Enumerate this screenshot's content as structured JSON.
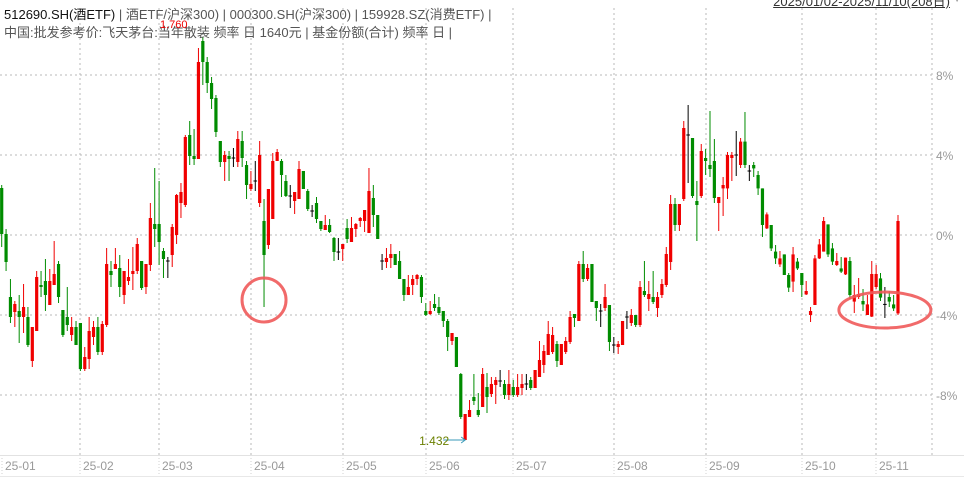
{
  "header": {
    "line1": [
      {
        "text": "512690.SH(酒ETF)",
        "primary": true
      },
      {
        "text": " | 酒ETF/沪深300) | 000300.SH(沪深300) | 159928.SZ(消费ETF) |",
        "primary": false
      }
    ],
    "line2": "中国:批发参考价:飞天茅台:当年散装 频率 日 1640元 | 基金份额(合计) 频率 日 |",
    "overlap_value": "1.760",
    "date_range": "2025/01/02-2025/11/10(208日)"
  },
  "colors": {
    "up": "#f00000",
    "down": "#008c00",
    "flat": "#000000",
    "annotation": "#f05a5a",
    "grid": "#b8b8b8",
    "axis_text": "#999999",
    "min_label": "#6b8000",
    "min_arrow": "#3a9ab8"
  },
  "chart_data": {
    "type": "candlestick",
    "y_unit": "%",
    "ylim": [
      -11,
      9.75
    ],
    "grid": true,
    "y_ticks": [
      {
        "value": 8,
        "label": "8%"
      },
      {
        "value": 4,
        "label": "4%"
      },
      {
        "value": 0,
        "label": "0%"
      },
      {
        "value": -4,
        "label": "-4%"
      },
      {
        "value": -8,
        "label": "-8%"
      }
    ],
    "x_ticks": [
      {
        "index": 0,
        "label": "25-01"
      },
      {
        "index": 18,
        "label": "25-02"
      },
      {
        "index": 36,
        "label": "25-03"
      },
      {
        "index": 57,
        "label": "25-04"
      },
      {
        "index": 78,
        "label": "25-05"
      },
      {
        "index": 97,
        "label": "25-06"
      },
      {
        "index": 117,
        "label": "25-07"
      },
      {
        "index": 140,
        "label": "25-08"
      },
      {
        "index": 161,
        "label": "25-09"
      },
      {
        "index": 183,
        "label": "25-10"
      },
      {
        "index": 200,
        "label": "25-11"
      }
    ],
    "min_marker": {
      "index": 106,
      "label": "1.432"
    },
    "annotations": [
      {
        "type": "circle",
        "index": 60,
        "value": -3.25
      },
      {
        "type": "ellipse",
        "index": 202,
        "value": -3.75
      }
    ],
    "candles_format": [
      "open",
      "close",
      "high",
      "low"
    ],
    "candles": [
      [
        2.35,
        0.05,
        2.5,
        -0.6
      ],
      [
        0.05,
        -1.35,
        0.3,
        -1.8
      ],
      [
        -3.1,
        -4.1,
        -2.2,
        -4.4
      ],
      [
        -3.85,
        -3.45,
        -3.3,
        -4.6
      ],
      [
        -3.8,
        -4.1,
        -3.0,
        -5.4
      ],
      [
        -4.1,
        -3.6,
        -2.45,
        -4.9
      ],
      [
        -4.1,
        -5.5,
        -3.6,
        -5.6
      ],
      [
        -6.3,
        -4.6,
        -4.6,
        -6.6
      ],
      [
        -4.8,
        -2.1,
        -1.8,
        -4.8
      ],
      [
        -2.5,
        -2.6,
        -1.8,
        -3.1
      ],
      [
        -2.3,
        -3.0,
        -1.2,
        -3.8
      ],
      [
        -3.5,
        -2.3,
        -1.7,
        -3.5
      ],
      [
        -2.5,
        -1.95,
        -0.3,
        -2.5
      ],
      [
        -1.45,
        -3.1,
        -1.3,
        -3.4
      ],
      [
        -3.75,
        -5.0,
        -3.75,
        -5.1
      ],
      [
        -4.1,
        -4.5,
        -2.6,
        -4.8
      ],
      [
        -5.0,
        -4.6,
        -4.1,
        -5.3
      ],
      [
        -4.6,
        -5.5,
        -4.3,
        -5.5
      ],
      [
        -4.4,
        -6.7,
        -4.4,
        -6.8
      ],
      [
        -6.7,
        -6.1,
        -5.6,
        -6.8
      ],
      [
        -6.2,
        -4.8,
        -4.1,
        -6.7
      ],
      [
        -5.1,
        -4.6,
        -4.3,
        -5.5
      ],
      [
        -4.6,
        -5.85,
        -4.1,
        -6.0
      ],
      [
        -5.85,
        -4.45,
        -4.3,
        -6.0
      ],
      [
        -4.5,
        -1.45,
        -0.65,
        -4.6
      ],
      [
        -1.8,
        -2.0,
        -1.3,
        -2.6
      ],
      [
        -1.7,
        -1.45,
        -0.65,
        -1.7
      ],
      [
        -1.65,
        -2.6,
        -1.0,
        -3.1
      ],
      [
        -3.0,
        -1.8,
        -1.8,
        -3.45
      ],
      [
        -2.3,
        -2.1,
        -1.2,
        -2.5
      ],
      [
        -1.95,
        -1.8,
        -0.6,
        -2.75
      ],
      [
        -1.8,
        -0.45,
        -0.15,
        -1.95
      ],
      [
        -1.3,
        -2.65,
        -1.3,
        -2.75
      ],
      [
        -2.6,
        -1.45,
        -1.45,
        -2.95
      ],
      [
        -1.5,
        0.85,
        1.6,
        -1.8
      ],
      [
        0.55,
        0.3,
        3.35,
        -0.6
      ],
      [
        0.55,
        -0.35,
        2.7,
        -1.5
      ],
      [
        -0.8,
        -1.2,
        -0.65,
        -2.15
      ],
      [
        -1.3,
        -1.3,
        -1.1,
        -2.15
      ],
      [
        -1.0,
        0.4,
        0.55,
        -1.6
      ],
      [
        0.0,
        2.0,
        2.05,
        -0.45
      ],
      [
        1.6,
        2.15,
        2.6,
        0.85
      ],
      [
        1.5,
        4.9,
        5.0,
        1.4
      ],
      [
        5.0,
        3.95,
        5.7,
        3.5
      ],
      [
        3.95,
        3.8,
        5.3,
        3.5
      ],
      [
        3.8,
        8.65,
        9.35,
        3.8
      ],
      [
        9.7,
        8.65,
        9.9,
        7.5
      ],
      [
        8.65,
        7.6,
        8.9,
        7.1
      ],
      [
        7.6,
        6.8,
        7.9,
        6.3
      ],
      [
        6.85,
        5.15,
        7.0,
        4.9
      ],
      [
        4.7,
        3.65,
        4.7,
        3.4
      ],
      [
        3.65,
        4.0,
        4.2,
        2.7
      ],
      [
        3.95,
        3.8,
        4.2,
        2.7
      ],
      [
        3.85,
        3.85,
        4.35,
        3.4
      ],
      [
        3.65,
        4.8,
        5.2,
        3.4
      ],
      [
        4.7,
        3.85,
        5.2,
        3.4
      ],
      [
        3.5,
        2.5,
        3.7,
        1.8
      ],
      [
        2.3,
        2.55,
        3.2,
        2.2
      ],
      [
        2.7,
        2.7,
        3.7,
        2.2
      ],
      [
        1.6,
        4.0,
        4.7,
        1.4
      ],
      [
        0.7,
        -1.0,
        1.8,
        -3.6
      ],
      [
        -0.5,
        2.3,
        2.3,
        -0.7
      ],
      [
        0.8,
        3.7,
        4.1,
        0.8
      ],
      [
        3.7,
        4.15,
        4.3,
        3.7
      ],
      [
        3.7,
        3.0,
        3.8,
        1.9
      ],
      [
        2.7,
        1.95,
        3.0,
        1.9
      ],
      [
        1.95,
        1.95,
        2.5,
        1.35
      ],
      [
        1.7,
        2.15,
        2.15,
        1.05
      ],
      [
        1.8,
        3.3,
        3.7,
        1.8
      ],
      [
        3.2,
        2.3,
        3.2,
        2.3
      ],
      [
        2.2,
        1.3,
        2.3,
        1.2
      ],
      [
        1.2,
        1.2,
        1.5,
        0.9
      ],
      [
        1.6,
        0.8,
        1.9,
        0.6
      ],
      [
        0.7,
        0.3,
        0.7,
        0.2
      ],
      [
        0.25,
        0.5,
        1.0,
        0.25
      ],
      [
        0.5,
        0.15,
        0.8,
        0.1
      ],
      [
        -0.15,
        -0.85,
        -0.1,
        -1.3
      ],
      [
        -0.85,
        -0.85,
        -0.15,
        -1.25
      ],
      [
        -0.7,
        -0.45,
        -0.45,
        -1.3
      ],
      [
        0.35,
        -0.2,
        0.8,
        -0.4
      ],
      [
        -0.35,
        0.35,
        0.9,
        -0.35
      ],
      [
        0.3,
        0.55,
        0.6,
        -0.1
      ],
      [
        0.7,
        0.85,
        0.9,
        0.4
      ],
      [
        0.7,
        1.25,
        1.25,
        0.15
      ],
      [
        0.1,
        2.2,
        3.35,
        0.1
      ],
      [
        1.85,
        1.0,
        2.5,
        0.4
      ],
      [
        1.0,
        -0.2,
        1.0,
        -0.2
      ],
      [
        -1.3,
        -1.3,
        -0.95,
        -1.75
      ],
      [
        -1.35,
        -1.15,
        -0.65,
        -1.65
      ],
      [
        -1.15,
        -0.95,
        -0.45,
        -1.65
      ],
      [
        -0.95,
        -1.5,
        -0.95,
        -1.5
      ],
      [
        -1.3,
        -2.2,
        -0.8,
        -2.2
      ],
      [
        -2.2,
        -3.0,
        -2.2,
        -3.3
      ],
      [
        -3.0,
        -2.6,
        -2.0,
        -3.0
      ],
      [
        -2.5,
        -2.2,
        -2.0,
        -3.0
      ],
      [
        -2.2,
        -2.0,
        -1.95,
        -2.5
      ],
      [
        -2.1,
        -3.1,
        -2.0,
        -3.4
      ],
      [
        -3.8,
        -4.0,
        -3.4,
        -4.05
      ],
      [
        -3.95,
        -3.8,
        -3.3,
        -4.0
      ],
      [
        -3.45,
        -3.65,
        -2.95,
        -3.8
      ],
      [
        -3.6,
        -3.9,
        -3.1,
        -4.0
      ],
      [
        -3.8,
        -4.3,
        -3.8,
        -4.6
      ],
      [
        -4.3,
        -5.1,
        -4.2,
        -5.8
      ],
      [
        -5.3,
        -4.9,
        -4.9,
        -5.5
      ],
      [
        -5.1,
        -6.6,
        -5.1,
        -6.6
      ],
      [
        -6.95,
        -9.1,
        -6.9,
        -9.2
      ],
      [
        -10.25,
        -8.95,
        -8.95,
        -10.25
      ],
      [
        -9.1,
        -8.75,
        -8.25,
        -9.1
      ],
      [
        -8.1,
        -8.3,
        -6.95,
        -8.5
      ],
      [
        -8.75,
        -9.0,
        -7.9,
        -9.1
      ],
      [
        -8.6,
        -6.95,
        -6.65,
        -8.6
      ],
      [
        -7.6,
        -8.1,
        -6.9,
        -8.9
      ],
      [
        -7.95,
        -7.45,
        -7.1,
        -8.1
      ],
      [
        -7.5,
        -7.25,
        -7.1,
        -8.45
      ],
      [
        -7.3,
        -7.3,
        -6.75,
        -7.6
      ],
      [
        -7.45,
        -8.0,
        -7.25,
        -8.2
      ],
      [
        -8.0,
        -7.45,
        -6.75,
        -8.25
      ],
      [
        -7.6,
        -8.0,
        -7.25,
        -8.1
      ],
      [
        -8.0,
        -7.6,
        -6.95,
        -8.1
      ],
      [
        -7.65,
        -7.45,
        -6.95,
        -8.0
      ],
      [
        -7.45,
        -7.45,
        -6.95,
        -7.75
      ],
      [
        -7.25,
        -7.65,
        -7.1,
        -7.75
      ],
      [
        -7.65,
        -6.75,
        -6.75,
        -7.65
      ],
      [
        -7.1,
        -6.25,
        -5.3,
        -7.1
      ],
      [
        -6.5,
        -5.8,
        -5.5,
        -6.9
      ],
      [
        -6.0,
        -4.95,
        -4.3,
        -6.0
      ],
      [
        -5.85,
        -5.0,
        -4.6,
        -5.95
      ],
      [
        -5.45,
        -6.3,
        -5.3,
        -6.6
      ],
      [
        -6.5,
        -5.45,
        -5.45,
        -6.5
      ],
      [
        -5.85,
        -5.3,
        -5.1,
        -5.95
      ],
      [
        -5.35,
        -4.1,
        -3.8,
        -5.45
      ],
      [
        -3.95,
        -4.15,
        -3.95,
        -4.6
      ],
      [
        -4.3,
        -1.45,
        -1.3,
        -4.3
      ],
      [
        -1.45,
        -2.2,
        -0.8,
        -2.35
      ],
      [
        -2.2,
        -1.65,
        -1.45,
        -2.3
      ],
      [
        -1.45,
        -3.35,
        -1.45,
        -3.35
      ],
      [
        -3.3,
        -3.65,
        -3.3,
        -4.3
      ],
      [
        -3.8,
        -3.8,
        -3.45,
        -4.6
      ],
      [
        -3.65,
        -3.1,
        -2.45,
        -3.8
      ],
      [
        -3.5,
        -5.35,
        -3.5,
        -5.8
      ],
      [
        -5.5,
        -5.5,
        -5.1,
        -5.9
      ],
      [
        -5.6,
        -5.45,
        -5.3,
        -5.95
      ],
      [
        -5.5,
        -4.3,
        -4.3,
        -5.5
      ],
      [
        -4.1,
        -4.1,
        -3.8,
        -4.7
      ],
      [
        -4.4,
        -4.0,
        -3.7,
        -4.55
      ],
      [
        -4.0,
        -4.5,
        -4.0,
        -4.6
      ],
      [
        -4.5,
        -2.6,
        -2.3,
        -4.6
      ],
      [
        -2.8,
        -3.0,
        -1.3,
        -3.1
      ],
      [
        -3.2,
        -2.95,
        -2.3,
        -3.8
      ],
      [
        -3.1,
        -3.35,
        -1.8,
        -3.45
      ],
      [
        -3.65,
        -3.1,
        -2.85,
        -4.1
      ],
      [
        -3.0,
        -2.45,
        -2.2,
        -3.15
      ],
      [
        -2.5,
        -0.95,
        -0.6,
        -2.6
      ],
      [
        -1.35,
        1.55,
        2.0,
        -1.75
      ],
      [
        1.55,
        0.5,
        1.85,
        0.2
      ],
      [
        0.5,
        1.55,
        1.55,
        0.2
      ],
      [
        1.8,
        5.35,
        5.7,
        1.7
      ],
      [
        5.0,
        5.0,
        6.5,
        2.6
      ],
      [
        4.85,
        1.95,
        4.85,
        1.85
      ],
      [
        1.7,
        1.5,
        2.7,
        -0.3
      ],
      [
        1.95,
        4.2,
        4.55,
        1.85
      ],
      [
        3.85,
        3.7,
        4.3,
        3.0
      ],
      [
        3.5,
        3.3,
        6.2,
        2.9
      ],
      [
        3.7,
        1.85,
        4.8,
        1.6
      ],
      [
        1.6,
        1.9,
        1.9,
        0.2
      ],
      [
        2.33,
        2.5,
        2.9,
        0.95
      ],
      [
        2.33,
        4.0,
        4.15,
        1.8
      ],
      [
        3.85,
        4.0,
        4.15,
        2.7
      ],
      [
        4.0,
        4.0,
        5.2,
        2.95
      ],
      [
        3.5,
        4.67,
        4.85,
        3.35
      ],
      [
        4.67,
        3.5,
        6.15,
        3.35
      ],
      [
        3.2,
        3.2,
        3.5,
        2.7
      ],
      [
        3.5,
        3.33,
        3.65,
        2.9
      ],
      [
        3.0,
        2.33,
        3.2,
        2.0
      ],
      [
        2.33,
        0.5,
        2.33,
        -0.1
      ],
      [
        0.33,
        1.03,
        1.13,
        0.3
      ],
      [
        0.5,
        -0.67,
        0.5,
        -0.8
      ],
      [
        -0.83,
        -1.17,
        -0.5,
        -1.45
      ],
      [
        -1.47,
        -1.17,
        -0.8,
        -1.6
      ],
      [
        -0.97,
        -2.0,
        -0.97,
        -2.0
      ],
      [
        -2.0,
        -2.63,
        -1.9,
        -2.85
      ],
      [
        -2.33,
        -0.97,
        -0.6,
        -2.85
      ],
      [
        -1.33,
        -1.67,
        -1.15,
        -1.75
      ],
      [
        -1.9,
        -2.5,
        -1.9,
        -3.1
      ],
      [
        -2.97,
        -2.8,
        -2.3,
        -3.0
      ],
      [
        -4.0,
        -3.8,
        -3.6,
        -4.35
      ],
      [
        -3.5,
        -1.17,
        -1.0,
        -3.5
      ],
      [
        -1.17,
        -0.47,
        -0.2,
        -1.2
      ],
      [
        -0.83,
        0.7,
        0.9,
        -0.83
      ],
      [
        0.53,
        -0.97,
        0.53,
        -1.1
      ],
      [
        -0.67,
        -1.33,
        -0.4,
        -1.5
      ],
      [
        -1.5,
        -1.3,
        -0.9,
        -1.55
      ],
      [
        -1.67,
        -1.83,
        -1.1,
        -1.9
      ],
      [
        -1.97,
        -1.13,
        -1.13,
        -2.0
      ],
      [
        -1.3,
        -3.0,
        -1.1,
        -3.2
      ],
      [
        -3.33,
        -3.0,
        -2.5,
        -3.9
      ],
      [
        -3.1,
        -2.95,
        -2.15,
        -3.2
      ],
      [
        -3.3,
        -3.47,
        -2.7,
        -3.8
      ],
      [
        -4.0,
        -3.47,
        -3.0,
        -4.0
      ],
      [
        -4.08,
        -1.95,
        -1.3,
        -4.1
      ],
      [
        -2.6,
        -1.95,
        -1.5,
        -2.7
      ],
      [
        -2.17,
        -3.13,
        -1.9,
        -3.3
      ],
      [
        -3.47,
        -3.47,
        -2.6,
        -4.15
      ],
      [
        -3.1,
        -3.33,
        -2.8,
        -3.6
      ],
      [
        -3.47,
        -3.67,
        -3.0,
        -3.8
      ],
      [
        -3.92,
        0.7,
        1.0,
        -4.0
      ]
    ]
  }
}
